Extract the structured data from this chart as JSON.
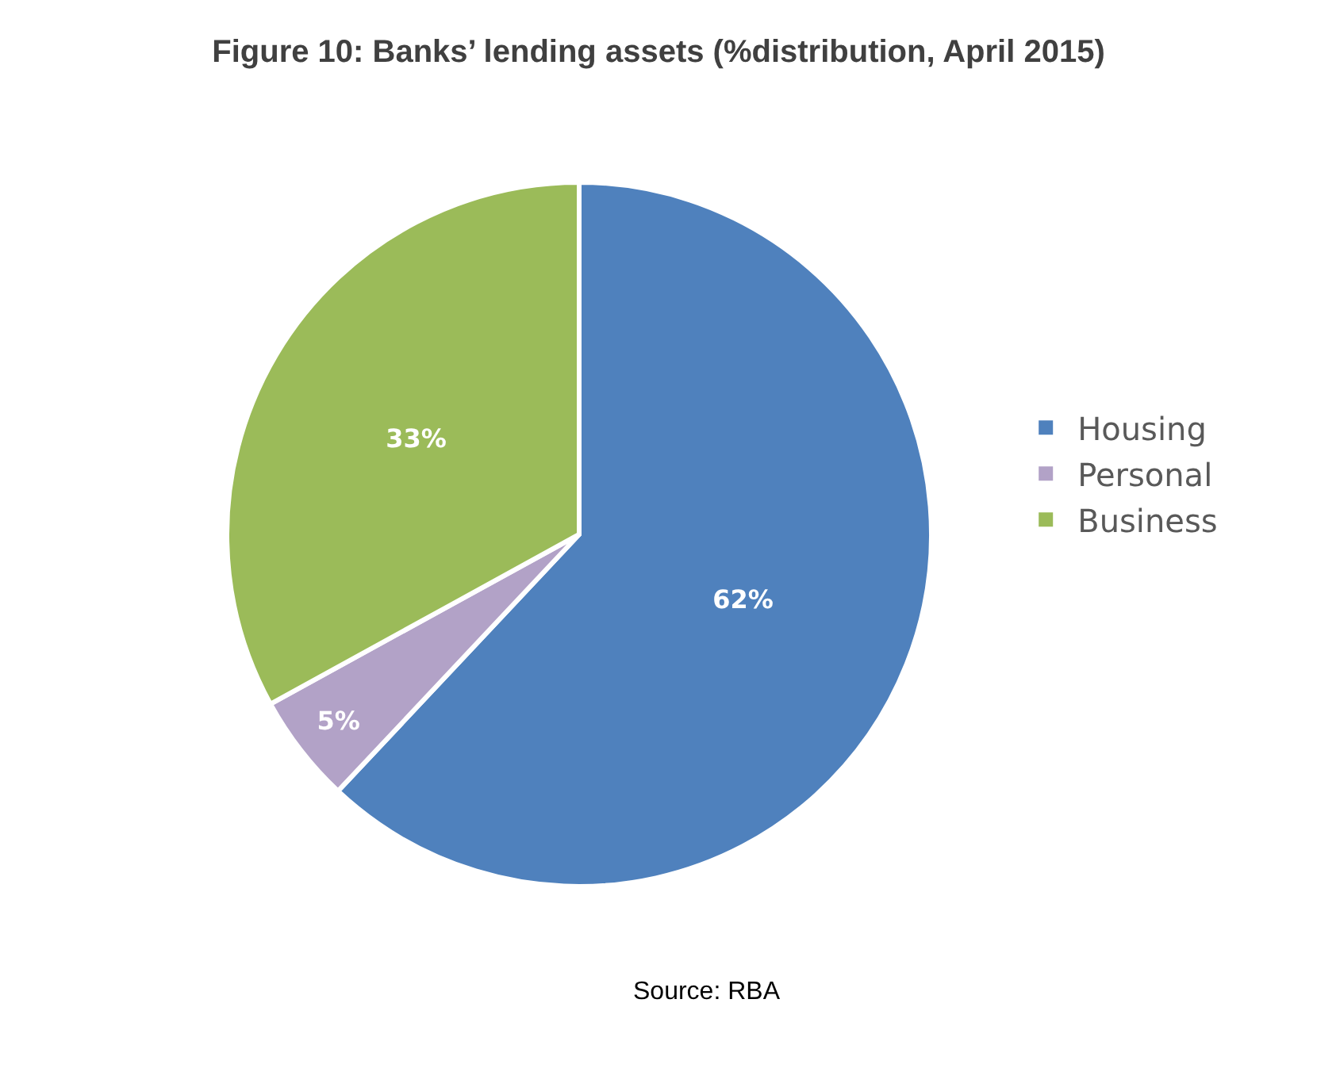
{
  "chart_data": {
    "type": "pie",
    "title": "Figure 10: Banks’ lending assets (%distribution, April 2015)",
    "categories": [
      "Housing",
      "Personal",
      "Business"
    ],
    "values": [
      62,
      5,
      33
    ],
    "colors": [
      "#4f81bd",
      "#b2a2c7",
      "#9bbb59"
    ],
    "value_labels": [
      "62%",
      "5%",
      "33%"
    ],
    "legend": "right",
    "annotations": [
      "Source: RBA"
    ]
  }
}
